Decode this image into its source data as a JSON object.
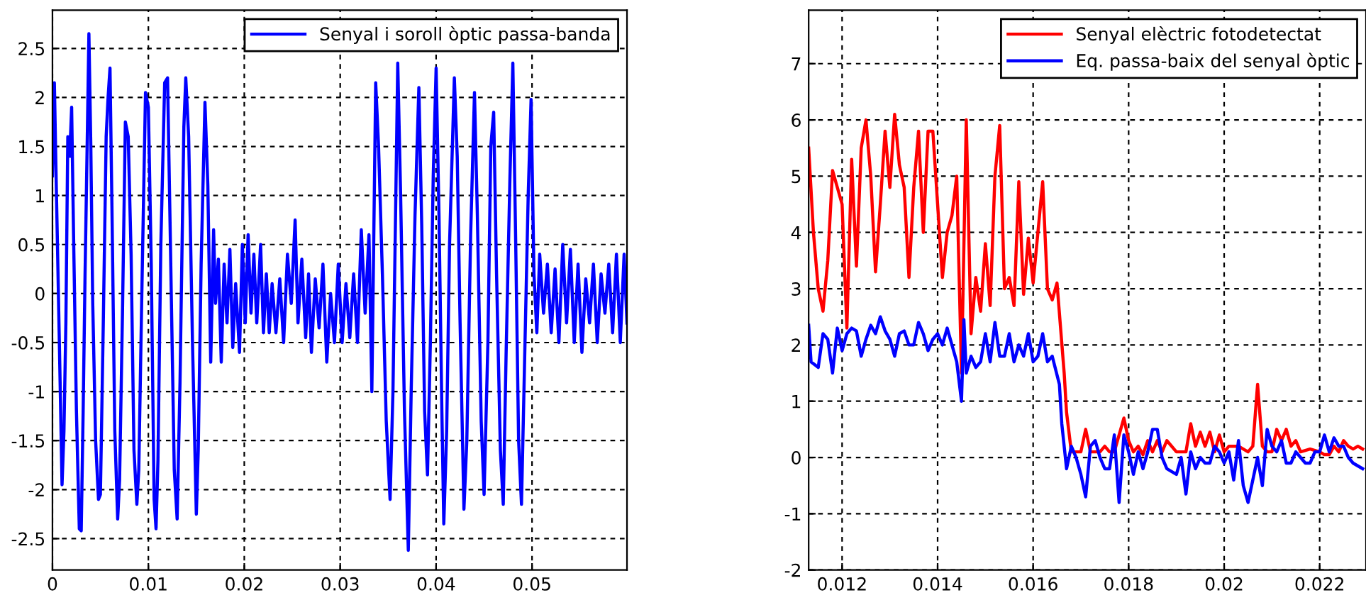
{
  "chart_data": [
    {
      "type": "line",
      "xlim": [
        0,
        0.0599
      ],
      "ylim": [
        -2.82,
        2.89
      ],
      "xticks": [
        0,
        0.01,
        0.02,
        0.03,
        0.04,
        0.05
      ],
      "yticks": [
        -2.5,
        -2,
        -1.5,
        -1,
        -0.5,
        0,
        0.5,
        1,
        1.5,
        2,
        2.5
      ],
      "grid": true,
      "legend": "top right",
      "line_style": "solid",
      "series": [
        {
          "name": "Senyal i soroll òptic passa-banda",
          "color": "#0000ff",
          "x": [
            0,
            0.0002,
            0.0004,
            0.0007,
            0.001,
            0.0012,
            0.0014,
            0.0016,
            0.0018,
            0.002,
            0.0022,
            0.0025,
            0.0028,
            0.003,
            0.0032,
            0.0034,
            0.0036,
            0.0038,
            0.004,
            0.0042,
            0.0045,
            0.0048,
            0.005,
            0.0053,
            0.0056,
            0.0058,
            0.006,
            0.0062,
            0.0065,
            0.0068,
            0.007,
            0.0073,
            0.0076,
            0.0079,
            0.0082,
            0.0085,
            0.0088,
            0.009,
            0.0093,
            0.0097,
            0.01,
            0.0103,
            0.0106,
            0.0108,
            0.011,
            0.0113,
            0.0117,
            0.012,
            0.0123,
            0.0127,
            0.013,
            0.0133,
            0.0137,
            0.0139,
            0.0142,
            0.0146,
            0.015,
            0.0152,
            0.0155,
            0.0159,
            0.0162,
            0.0165,
            0.0168,
            0.017,
            0.0173,
            0.0176,
            0.0179,
            0.0182,
            0.0185,
            0.0188,
            0.0191,
            0.0195,
            0.0198,
            0.0201,
            0.0204,
            0.0207,
            0.021,
            0.0213,
            0.0217,
            0.022,
            0.0223,
            0.0226,
            0.0229,
            0.0233,
            0.0237,
            0.0241,
            0.0245,
            0.0249,
            0.0253,
            0.0256,
            0.026,
            0.0264,
            0.0267,
            0.027,
            0.0274,
            0.0278,
            0.0282,
            0.0286,
            0.029,
            0.0294,
            0.0298,
            0.0302,
            0.0306,
            0.031,
            0.0314,
            0.0318,
            0.0322,
            0.0326,
            0.033,
            0.0333,
            0.0337,
            0.034,
            0.0344,
            0.0348,
            0.0352,
            0.0355,
            0.0358,
            0.036,
            0.0363,
            0.0367,
            0.0371,
            0.0374,
            0.0378,
            0.0382,
            0.0385,
            0.0388,
            0.0391,
            0.0394,
            0.0397,
            0.04,
            0.0403,
            0.0406,
            0.0408,
            0.0411,
            0.0414,
            0.0419,
            0.0422,
            0.0425,
            0.0429,
            0.0432,
            0.0436,
            0.044,
            0.0443,
            0.0447,
            0.045,
            0.0454,
            0.0457,
            0.046,
            0.0463,
            0.0467,
            0.047,
            0.0473,
            0.0477,
            0.048,
            0.0483,
            0.0486,
            0.0489,
            0.0492,
            0.0496,
            0.0499,
            0.0502,
            0.0505,
            0.0508,
            0.0512,
            0.0516,
            0.052,
            0.0524,
            0.0528,
            0.0532,
            0.0536,
            0.054,
            0.0544,
            0.0548,
            0.0552,
            0.0556,
            0.056,
            0.0564,
            0.0568,
            0.0572,
            0.0576,
            0.058,
            0.0584,
            0.0588,
            0.0592,
            0.0596,
            0.0599
          ],
          "values": [
            1.2,
            2.15,
            1.1,
            -0.4,
            -1.95,
            -1.4,
            -0.3,
            1.6,
            1.4,
            1.9,
            0.6,
            -1.2,
            -2.4,
            -2.42,
            -1.2,
            0.2,
            1.4,
            2.65,
            1.5,
            -0.1,
            -1.5,
            -2.1,
            -2.05,
            -0.3,
            1.6,
            2.0,
            2.3,
            0.9,
            -1.4,
            -2.3,
            -1.9,
            -0.2,
            1.75,
            1.6,
            0.4,
            -1.6,
            -2.15,
            -1.8,
            -0.1,
            2.05,
            1.9,
            0.3,
            -2.1,
            -2.4,
            -1.7,
            0.5,
            2.15,
            2.2,
            0.5,
            -1.8,
            -2.3,
            -0.9,
            1.7,
            2.2,
            1.6,
            -0.5,
            -2.25,
            -1.6,
            0.3,
            1.95,
            1.1,
            -0.7,
            0.65,
            -0.1,
            0.35,
            -0.7,
            0.3,
            -0.3,
            0.45,
            -0.55,
            0.1,
            -0.6,
            0.5,
            -0.3,
            0.6,
            -0.2,
            0.4,
            -0.3,
            0.5,
            -0.4,
            0.2,
            -0.4,
            0.1,
            -0.4,
            0.15,
            -0.5,
            0.4,
            -0.1,
            0.75,
            -0.3,
            0.35,
            -0.45,
            0.2,
            -0.6,
            0.15,
            -0.35,
            0.3,
            -0.7,
            0.0,
            -0.5,
            0.3,
            -0.5,
            0.1,
            -0.45,
            0.2,
            -0.5,
            0.65,
            -0.2,
            0.6,
            -1.0,
            2.15,
            1.5,
            0.2,
            -1.3,
            -2.1,
            -1.0,
            1.0,
            2.35,
            1.0,
            -1.2,
            -2.62,
            -1.0,
            0.8,
            2.1,
            0.7,
            -1.2,
            -1.85,
            -0.5,
            1.2,
            2.3,
            0.8,
            -1.2,
            -2.35,
            -1.4,
            0.5,
            2.2,
            1.4,
            -0.3,
            -2.2,
            -1.5,
            0.6,
            2.05,
            0.8,
            -1.3,
            -2.05,
            -0.5,
            1.5,
            1.85,
            0.2,
            -1.6,
            -2.15,
            -0.6,
            1.2,
            2.35,
            0.5,
            -1.5,
            -2.15,
            -0.8,
            1.0,
            1.98,
            0.2,
            -0.4,
            0.4,
            -0.2,
            0.3,
            -0.4,
            0.25,
            -0.5,
            0.5,
            -0.3,
            0.45,
            -0.5,
            0.3,
            -0.6,
            0.15,
            -0.3,
            0.3,
            -0.5,
            0.2,
            -0.2,
            0.3,
            -0.4,
            0.4,
            -0.5,
            0.4,
            -0.3
          ]
        }
      ]
    },
    {
      "type": "line",
      "xlim": [
        0.0113,
        0.02297
      ],
      "ylim": [
        -2,
        7.95
      ],
      "xticks": [
        0.012,
        0.014,
        0.016,
        0.018,
        0.02,
        0.022
      ],
      "yticks": [
        -2,
        -1,
        0,
        1,
        2,
        3,
        4,
        5,
        6,
        7
      ],
      "grid": true,
      "legend": "top right",
      "line_style": "solid",
      "series": [
        {
          "name": "Senyal elèctric fotodetectat",
          "color": "#ff0000",
          "x": [
            0.0113,
            0.0114,
            0.0115,
            0.0116,
            0.0117,
            0.0118,
            0.0119,
            0.012,
            0.0121,
            0.0122,
            0.0123,
            0.0124,
            0.0125,
            0.0126,
            0.0127,
            0.0128,
            0.0129,
            0.013,
            0.0131,
            0.0132,
            0.0133,
            0.0134,
            0.0135,
            0.0136,
            0.0137,
            0.0138,
            0.0139,
            0.014,
            0.0141,
            0.0142,
            0.0143,
            0.0144,
            0.0145,
            0.0146,
            0.0147,
            0.0148,
            0.0149,
            0.015,
            0.0151,
            0.0152,
            0.0153,
            0.0154,
            0.0155,
            0.0156,
            0.0157,
            0.0158,
            0.0159,
            0.016,
            0.0161,
            0.0162,
            0.0163,
            0.0164,
            0.0165,
            0.01665,
            0.0167,
            0.0168,
            0.0169,
            0.017,
            0.0171,
            0.0172,
            0.0173,
            0.0174,
            0.0175,
            0.0176,
            0.0177,
            0.0179,
            0.018,
            0.0181,
            0.0182,
            0.0183,
            0.0184,
            0.0185,
            0.0186,
            0.0187,
            0.0188,
            0.019,
            0.0191,
            0.0192,
            0.0193,
            0.0194,
            0.0195,
            0.0196,
            0.0197,
            0.0198,
            0.0199,
            0.02,
            0.0201,
            0.0202,
            0.0203,
            0.0205,
            0.0206,
            0.0207,
            0.0208,
            0.0209,
            0.021,
            0.0211,
            0.0212,
            0.0213,
            0.0214,
            0.0215,
            0.0216,
            0.0218,
            0.022,
            0.0221,
            0.0222,
            0.0223,
            0.0224,
            0.0225,
            0.0226,
            0.0227,
            0.0228,
            0.0229
          ],
          "values": [
            5.5,
            4.0,
            3.0,
            2.6,
            3.5,
            5.1,
            4.8,
            4.5,
            2.3,
            5.3,
            3.4,
            5.5,
            6.0,
            5.0,
            3.3,
            4.5,
            5.8,
            4.8,
            6.1,
            5.2,
            4.8,
            3.2,
            4.8,
            5.8,
            4.0,
            5.8,
            5.8,
            4.5,
            3.2,
            4.0,
            4.3,
            5.0,
            1.5,
            6.0,
            2.2,
            3.2,
            2.6,
            3.8,
            2.7,
            5.0,
            5.9,
            3.0,
            3.2,
            2.7,
            4.9,
            2.9,
            3.9,
            3.1,
            4.0,
            4.9,
            3.0,
            2.8,
            3.1,
            1.5,
            0.8,
            0.1,
            0.1,
            0.1,
            0.5,
            0.1,
            0.1,
            0.1,
            0.2,
            0.1,
            0.1,
            0.7,
            0.3,
            0.1,
            0.2,
            0.05,
            0.3,
            0.1,
            0.3,
            0.1,
            0.3,
            0.1,
            0.1,
            0.1,
            0.6,
            0.2,
            0.45,
            0.2,
            0.45,
            0.1,
            0.4,
            0.1,
            0.2,
            0.2,
            0.2,
            0.1,
            0.2,
            1.3,
            0.2,
            0.1,
            0.1,
            0.5,
            0.3,
            0.5,
            0.2,
            0.3,
            0.1,
            0.15,
            0.1,
            0.05,
            0.05,
            0.2,
            0.1,
            0.3,
            0.2,
            0.15,
            0.2,
            0.15
          ]
        },
        {
          "name": "Eq. passa-baix del senyal òptic",
          "color": "#0000ff",
          "x": [
            0.0113,
            0.01135,
            0.0115,
            0.0116,
            0.0117,
            0.0118,
            0.0119,
            0.012,
            0.0121,
            0.0122,
            0.0123,
            0.0124,
            0.0125,
            0.0126,
            0.0127,
            0.0128,
            0.0129,
            0.013,
            0.0131,
            0.0132,
            0.0133,
            0.0134,
            0.0135,
            0.0136,
            0.0137,
            0.0138,
            0.0139,
            0.014,
            0.0141,
            0.0142,
            0.0143,
            0.0144,
            0.0145,
            0.01455,
            0.0146,
            0.0147,
            0.0148,
            0.0149,
            0.015,
            0.0151,
            0.0152,
            0.0153,
            0.0154,
            0.0155,
            0.0156,
            0.0157,
            0.0158,
            0.0159,
            0.016,
            0.0161,
            0.0162,
            0.0163,
            0.0164,
            0.01655,
            0.0166,
            0.0167,
            0.0168,
            0.0169,
            0.017,
            0.0171,
            0.0172,
            0.0173,
            0.0174,
            0.0175,
            0.0176,
            0.0177,
            0.0178,
            0.0179,
            0.018,
            0.0181,
            0.0182,
            0.0183,
            0.0184,
            0.0185,
            0.0186,
            0.0187,
            0.0188,
            0.0189,
            0.019,
            0.0191,
            0.0192,
            0.0193,
            0.0194,
            0.0195,
            0.0196,
            0.0197,
            0.0198,
            0.0199,
            0.02,
            0.0201,
            0.0202,
            0.0203,
            0.0204,
            0.0205,
            0.0206,
            0.0207,
            0.0208,
            0.0209,
            0.021,
            0.0211,
            0.0212,
            0.0213,
            0.0214,
            0.0215,
            0.0216,
            0.0217,
            0.0218,
            0.0219,
            0.022,
            0.0221,
            0.0222,
            0.0223,
            0.0224,
            0.0225,
            0.0226,
            0.0227,
            0.0229
          ],
          "values": [
            2.35,
            1.7,
            1.6,
            2.2,
            2.1,
            1.5,
            2.3,
            1.9,
            2.2,
            2.3,
            2.25,
            1.8,
            2.1,
            2.35,
            2.2,
            2.5,
            2.25,
            2.1,
            1.8,
            2.2,
            2.25,
            2.0,
            2.0,
            2.4,
            2.2,
            1.9,
            2.1,
            2.2,
            2.0,
            2.3,
            2.0,
            1.7,
            1.0,
            2.45,
            1.5,
            1.8,
            1.6,
            1.7,
            2.2,
            1.7,
            2.4,
            1.8,
            1.8,
            2.2,
            1.7,
            2.0,
            1.8,
            2.2,
            1.7,
            1.8,
            2.2,
            1.7,
            1.8,
            1.3,
            0.6,
            -0.2,
            0.2,
            0.0,
            -0.3,
            -0.7,
            0.2,
            0.3,
            0.0,
            -0.2,
            -0.2,
            0.4,
            -0.8,
            0.4,
            0.1,
            -0.3,
            0.1,
            -0.2,
            0.1,
            0.5,
            0.5,
            0.0,
            -0.2,
            -0.25,
            -0.3,
            0.0,
            -0.65,
            0.1,
            -0.2,
            0.0,
            -0.1,
            -0.1,
            0.2,
            0.1,
            -0.1,
            0.1,
            -0.4,
            0.3,
            -0.5,
            -0.8,
            -0.4,
            0.0,
            -0.5,
            0.5,
            0.2,
            0.1,
            0.3,
            -0.1,
            -0.1,
            0.1,
            0.0,
            -0.1,
            -0.1,
            0.1,
            0.1,
            0.4,
            0.1,
            0.35,
            0.2,
            0.2,
            0.0,
            -0.1,
            -0.2
          ]
        }
      ]
    }
  ]
}
